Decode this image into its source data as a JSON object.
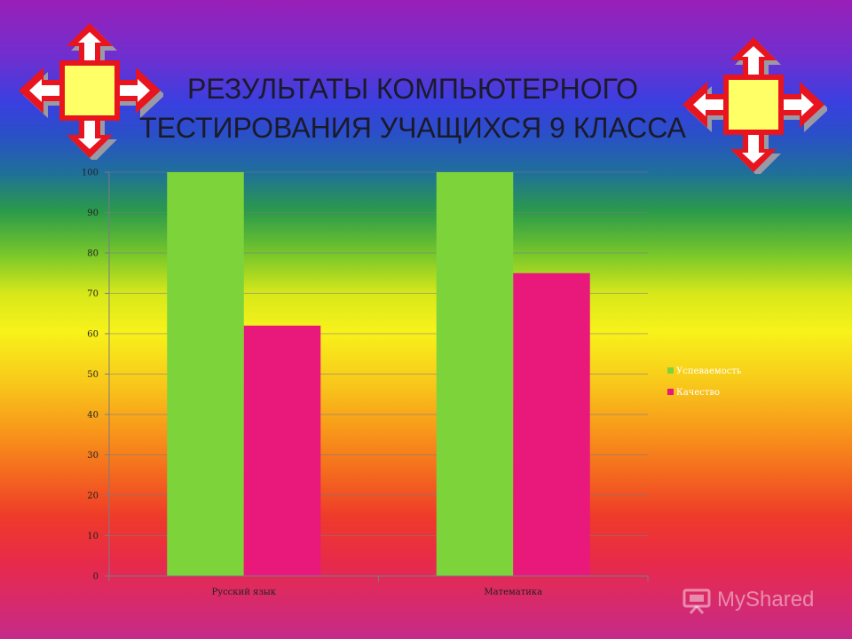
{
  "slide": {
    "title_line1": "РЕЗУЛЬТАТЫ КОМПЬЮТЕРНОГО",
    "title_line2": "ТЕСТИРОВАНИЯ УЧАЩИХСЯ 9 КЛАССА",
    "watermark": "MyShared"
  },
  "chart_data": {
    "type": "bar",
    "title": "",
    "xlabel": "",
    "ylabel": "",
    "categories": [
      "Русский язык",
      "Математика"
    ],
    "series": [
      {
        "name": "Успеваемость",
        "values": [
          100,
          100
        ],
        "color": "#7dd33a"
      },
      {
        "name": "Качество",
        "values": [
          62,
          75
        ],
        "color": "#e8197a"
      }
    ],
    "ylim": [
      0,
      100
    ],
    "yticks": [
      0,
      10,
      20,
      30,
      40,
      50,
      60,
      70,
      80,
      90,
      100
    ],
    "grid": true,
    "legend_position": "right"
  }
}
